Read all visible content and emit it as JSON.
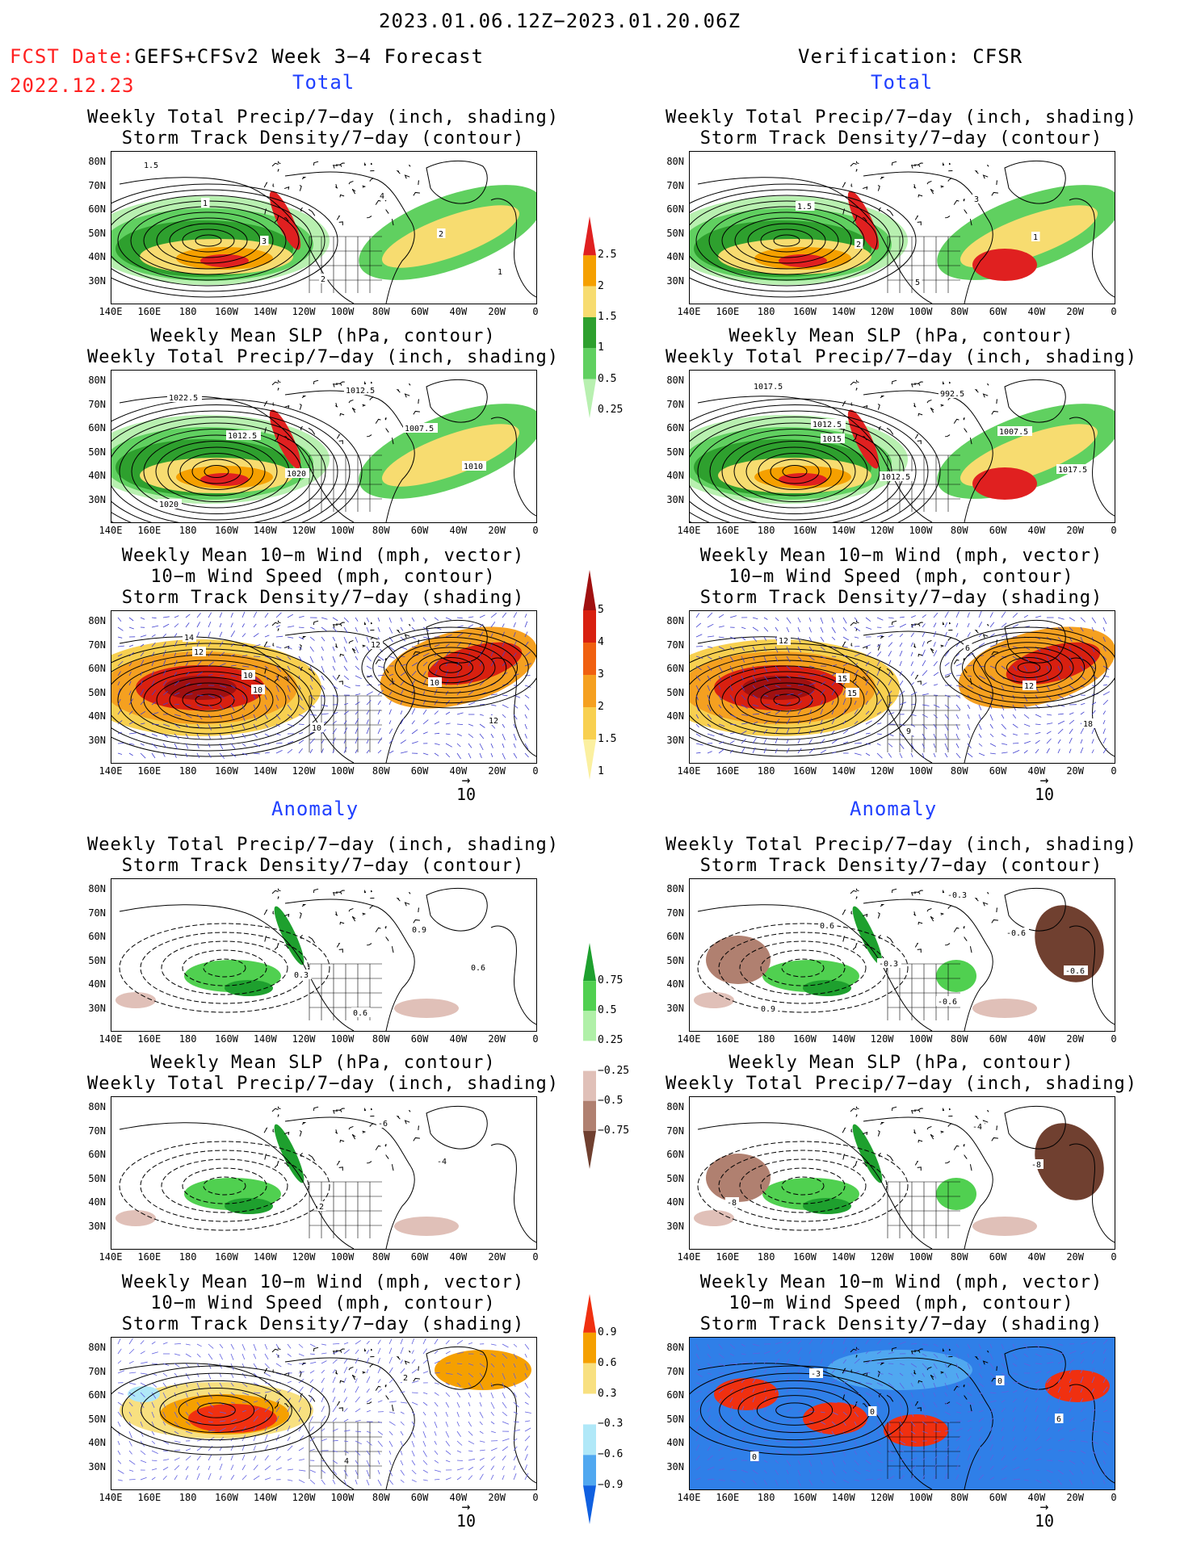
{
  "header": {
    "date_range": "2023.01.06.12Z−2023.01.20.06Z",
    "fcst_label": "FCST Date:",
    "fcst_date": "2022.12.23",
    "left_title": "GEFS+CFSv2 Week 3−4 Forecast",
    "right_title": "Verification: CFSR",
    "section_total": "Total",
    "section_anomaly": "Anomaly"
  },
  "titles": {
    "precip_storm": [
      "Weekly Total Precip/7−day (inch, shading)",
      "Storm Track Density/7−day (contour)"
    ],
    "slp_precip": [
      "Weekly Mean SLP (hPa, contour)",
      "Weekly Total Precip/7−day (inch, shading)"
    ],
    "wind_storm": [
      "Weekly Mean 10−m Wind (mph, vector)",
      "10−m Wind Speed (mph, contour)",
      "Storm Track Density/7−day (shading)"
    ]
  },
  "axes": {
    "lat_ticks": [
      "80N",
      "70N",
      "60N",
      "50N",
      "40N",
      "30N"
    ],
    "lon_ticks": [
      "140E",
      "160E",
      "180",
      "160W",
      "140W",
      "120W",
      "100W",
      "80W",
      "60W",
      "40W",
      "20W",
      "0"
    ]
  },
  "vector_ref": "10",
  "colorbars": {
    "precip_total": {
      "labels": [
        "2.5",
        "2",
        "1.5",
        "1",
        "0.5",
        "0.25"
      ],
      "colors": [
        "#e02020",
        "#f5a000",
        "#f7dc70",
        "#2ea02e",
        "#60d060",
        "#b8f0b0"
      ]
    },
    "storm_total": {
      "labels": [
        "5",
        "4",
        "3",
        "2",
        "1.5",
        "1"
      ],
      "colors": [
        "#a01010",
        "#d82010",
        "#f06010",
        "#f5a020",
        "#f8d050",
        "#fbf0a0"
      ]
    },
    "precip_anom": {
      "labels": [
        "0.75",
        "0.5",
        "0.25",
        "−0.25",
        "−0.5",
        "−0.75"
      ],
      "colors": [
        "#1ea02e",
        "#50d050",
        "#b0f0a8",
        "#ffffff",
        "#e0c0b8",
        "#b08070",
        "#704030"
      ]
    },
    "storm_anom": {
      "labels": [
        "0.9",
        "0.6",
        "0.3",
        "−0.3",
        "−0.6",
        "−0.9"
      ],
      "colors": [
        "#f03010",
        "#f5a000",
        "#f8e080",
        "#ffffff",
        "#b0e8f8",
        "#50a8f0",
        "#1060e0"
      ]
    }
  },
  "panel_labels": {
    "fc_precip_total": [
      "1.5",
      "1",
      "3",
      "2",
      "4",
      "2",
      "1"
    ],
    "fc_slp_total": [
      "1022.5",
      "1012.5",
      "1020",
      "1012.5",
      "1007.5",
      "1010",
      "1020"
    ],
    "fc_wind_total": [
      "12",
      "10",
      "10",
      "12",
      "10",
      "12",
      "14",
      "10"
    ],
    "ob_precip_total": [
      "1.5",
      "2",
      "5",
      "3",
      "1"
    ],
    "ob_slp_total": [
      "1015",
      "1012.5",
      "992.5",
      "1007.5",
      "1017.5",
      "1017.5",
      "1012.5"
    ],
    "ob_wind_total": [
      "15",
      "9",
      "6",
      "12",
      "18",
      "12",
      "15"
    ],
    "fc_precip_anom": [
      "0.3",
      "0.6",
      "0.9",
      "0.6"
    ],
    "fc_slp_anom": [
      "2",
      "-6",
      "-4"
    ],
    "fc_wind_anom": [
      "4",
      "2"
    ],
    "ob_precip_anom": [
      "-0.3",
      "-0.6",
      "-0.6",
      "0.9",
      "0.6",
      "-0.3",
      "-0.6"
    ],
    "ob_slp_anom": [
      "-4",
      "-8",
      "-8"
    ],
    "ob_wind_anom": [
      "0",
      "6",
      "0",
      "-3",
      "0"
    ]
  }
}
